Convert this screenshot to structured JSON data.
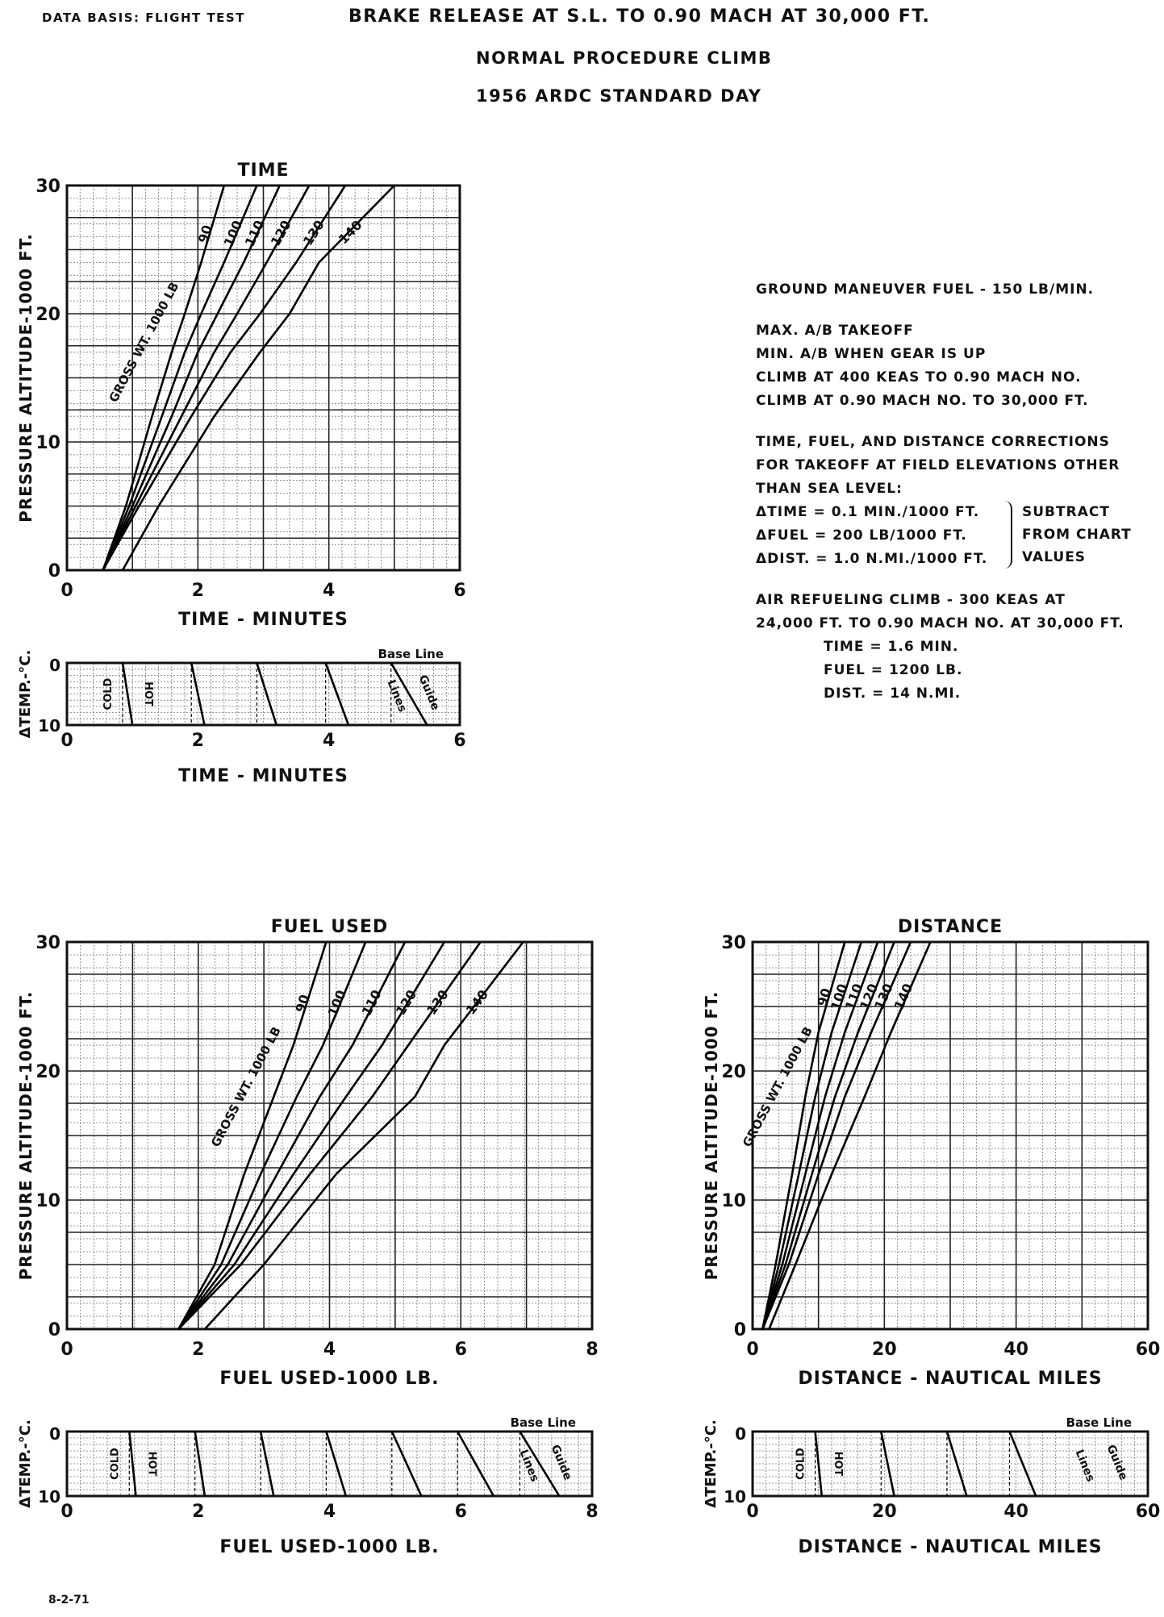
{
  "header": {
    "data_basis": "DATA BASIS: FLIGHT TEST",
    "title": "BRAKE RELEASE AT S.L. TO 0.90 MACH AT 30,000 FT.",
    "subtitle1": "NORMAL PROCEDURE CLIMB",
    "subtitle2": "1956 ARDC STANDARD DAY"
  },
  "notes": {
    "ground_fuel": "GROUND MANEUVER FUEL - 150 LB/MIN.",
    "takeoff": [
      "MAX. A/B TAKEOFF",
      "MIN. A/B WHEN GEAR IS UP",
      "CLIMB AT 400 KEAS TO 0.90 MACH NO.",
      "CLIMB AT 0.90 MACH NO. TO 30,000 FT."
    ],
    "corrections_intro": [
      "TIME, FUEL, AND DISTANCE CORRECTIONS",
      "FOR TAKEOFF AT FIELD ELEVATIONS OTHER",
      "THAN SEA LEVEL:"
    ],
    "corrections": [
      "ΔTIME = 0.1 MIN./1000 FT.",
      "ΔFUEL = 200 LB/1000 FT.",
      "ΔDIST. = 1.0 N.MI./1000 FT."
    ],
    "corrections_side": [
      "SUBTRACT",
      "FROM CHART",
      "VALUES"
    ],
    "air_refuel": [
      "AIR REFUELING CLIMB - 300 KEAS AT",
      "24,000 FT. TO 0.90 MACH NO. AT 30,000 FT."
    ],
    "air_refuel_values": [
      "TIME = 1.6 MIN.",
      "FUEL = 1200 LB.",
      "DIST. = 14 N.MI."
    ]
  },
  "footer": "8-2-71",
  "chart_data": [
    {
      "type": "line",
      "title": "TIME",
      "xlabel": "TIME - MINUTES",
      "ylabel": "PRESSURE ALTITUDE-1000 FT.",
      "xlim": [
        0,
        6
      ],
      "ylim": [
        0,
        30
      ],
      "x_ticks": [
        "0",
        "2",
        "4",
        "6"
      ],
      "y_ticks": [
        "0",
        "10",
        "20",
        "30"
      ],
      "grid": true,
      "curve_label": "GROSS WT. 1000 LB",
      "series": [
        {
          "name": "90",
          "points": [
            [
              0.55,
              0
            ],
            [
              0.9,
              5
            ],
            [
              1.3,
              12
            ],
            [
              1.6,
              17
            ],
            [
              1.8,
              20
            ],
            [
              2.05,
              24
            ],
            [
              2.4,
              30
            ]
          ]
        },
        {
          "name": "100",
          "points": [
            [
              0.55,
              0
            ],
            [
              0.95,
              5
            ],
            [
              1.45,
              12
            ],
            [
              1.8,
              17
            ],
            [
              2.05,
              20
            ],
            [
              2.4,
              24
            ],
            [
              2.9,
              30
            ]
          ]
        },
        {
          "name": "110",
          "points": [
            [
              0.55,
              0
            ],
            [
              1.0,
              5
            ],
            [
              1.6,
              12
            ],
            [
              2.0,
              17
            ],
            [
              2.3,
              20
            ],
            [
              2.7,
              24
            ],
            [
              3.25,
              30
            ]
          ]
        },
        {
          "name": "120",
          "points": [
            [
              0.55,
              0
            ],
            [
              1.05,
              5
            ],
            [
              1.75,
              12
            ],
            [
              2.25,
              17
            ],
            [
              2.6,
              20
            ],
            [
              3.05,
              24
            ],
            [
              3.7,
              30
            ]
          ]
        },
        {
          "name": "130",
          "points": [
            [
              0.55,
              0
            ],
            [
              1.1,
              5
            ],
            [
              1.9,
              12
            ],
            [
              2.5,
              17
            ],
            [
              2.95,
              20
            ],
            [
              3.5,
              24
            ],
            [
              4.25,
              30
            ]
          ]
        },
        {
          "name": "140",
          "points": [
            [
              0.85,
              0
            ],
            [
              1.4,
              5
            ],
            [
              2.25,
              12
            ],
            [
              2.95,
              17
            ],
            [
              3.4,
              20
            ],
            [
              3.85,
              24
            ],
            [
              5.0,
              30
            ]
          ]
        }
      ]
    },
    {
      "type": "line",
      "title": "",
      "xlabel": "TIME - MINUTES",
      "ylabel": "ΔTEMP.-°C.",
      "xlim": [
        0,
        6
      ],
      "ylim": [
        0,
        10
      ],
      "x_ticks": [
        "0",
        "2",
        "4",
        "6"
      ],
      "y_ticks": [
        "0",
        "10"
      ],
      "labels": [
        "Base Line",
        "COLD",
        "HOT",
        "Guide",
        "Lines"
      ],
      "guide_lines": [
        [
          0.85,
          1.0
        ],
        [
          1.9,
          2.1
        ],
        [
          2.9,
          3.2
        ],
        [
          3.95,
          4.3
        ],
        [
          4.95,
          5.5
        ]
      ]
    },
    {
      "type": "line",
      "title": "FUEL USED",
      "xlabel": "FUEL USED-1000 LB.",
      "ylabel": "PRESSURE ALTITUDE-1000 FT.",
      "xlim": [
        0,
        8
      ],
      "ylim": [
        0,
        30
      ],
      "x_ticks": [
        "0",
        "2",
        "4",
        "6",
        "8"
      ],
      "y_ticks": [
        "0",
        "10",
        "20",
        "30"
      ],
      "grid": true,
      "curve_label": "GROSS WT. 1000 LB",
      "series": [
        {
          "name": "90",
          "points": [
            [
              1.7,
              0
            ],
            [
              2.25,
              5
            ],
            [
              2.7,
              12
            ],
            [
              3.15,
              18
            ],
            [
              3.45,
              22
            ],
            [
              3.95,
              30
            ]
          ]
        },
        {
          "name": "100",
          "points": [
            [
              1.7,
              0
            ],
            [
              2.35,
              5
            ],
            [
              2.95,
              12
            ],
            [
              3.5,
              18
            ],
            [
              3.9,
              22
            ],
            [
              4.55,
              30
            ]
          ]
        },
        {
          "name": "110",
          "points": [
            [
              1.7,
              0
            ],
            [
              2.45,
              5
            ],
            [
              3.2,
              12
            ],
            [
              3.85,
              18
            ],
            [
              4.35,
              22
            ],
            [
              5.15,
              30
            ]
          ]
        },
        {
          "name": "120",
          "points": [
            [
              1.7,
              0
            ],
            [
              2.55,
              5
            ],
            [
              3.45,
              12
            ],
            [
              4.25,
              18
            ],
            [
              4.8,
              22
            ],
            [
              5.75,
              30
            ]
          ]
        },
        {
          "name": "130",
          "points": [
            [
              1.7,
              0
            ],
            [
              2.65,
              5
            ],
            [
              3.7,
              12
            ],
            [
              4.65,
              18
            ],
            [
              5.2,
              22
            ],
            [
              6.3,
              30
            ]
          ]
        },
        {
          "name": "140",
          "points": [
            [
              2.1,
              0
            ],
            [
              3.0,
              5
            ],
            [
              4.1,
              12
            ],
            [
              5.3,
              18
            ],
            [
              5.75,
              22
            ],
            [
              6.95,
              30
            ]
          ]
        }
      ]
    },
    {
      "type": "line",
      "title": "",
      "xlabel": "FUEL USED-1000 LB.",
      "ylabel": "ΔTEMP.-°C.",
      "xlim": [
        0,
        8
      ],
      "ylim": [
        0,
        10
      ],
      "x_ticks": [
        "0",
        "2",
        "4",
        "6",
        "8"
      ],
      "y_ticks": [
        "0",
        "10"
      ],
      "labels": [
        "Base Line",
        "COLD",
        "HOT",
        "Guide",
        "Lines"
      ],
      "guide_lines": [
        [
          0.95,
          1.05
        ],
        [
          1.95,
          2.1
        ],
        [
          2.95,
          3.15
        ],
        [
          3.95,
          4.25
        ],
        [
          4.95,
          5.4
        ],
        [
          5.95,
          6.5
        ],
        [
          6.9,
          7.5
        ]
      ]
    },
    {
      "type": "line",
      "title": "DISTANCE",
      "xlabel": "DISTANCE - NAUTICAL MILES",
      "ylabel": "PRESSURE ALTITUDE-1000 FT.",
      "xlim": [
        0,
        60
      ],
      "ylim": [
        0,
        30
      ],
      "x_ticks": [
        "0",
        "20",
        "40",
        "60"
      ],
      "y_ticks": [
        "0",
        "10",
        "20",
        "30"
      ],
      "grid": true,
      "curve_label": "GROSS WT. 1000 LB",
      "series": [
        {
          "name": "90",
          "points": [
            [
              1.5,
              0
            ],
            [
              3.5,
              5
            ],
            [
              6,
              12
            ],
            [
              8,
              18
            ],
            [
              10,
              23
            ],
            [
              14,
              30
            ]
          ]
        },
        {
          "name": "100",
          "points": [
            [
              1.5,
              0
            ],
            [
              4,
              5
            ],
            [
              7,
              12
            ],
            [
              9.5,
              18
            ],
            [
              12,
              23
            ],
            [
              16.5,
              30
            ]
          ]
        },
        {
          "name": "110",
          "points": [
            [
              1.5,
              0
            ],
            [
              4.5,
              5
            ],
            [
              8,
              12
            ],
            [
              11,
              18
            ],
            [
              14,
              23
            ],
            [
              19,
              30
            ]
          ]
        },
        {
          "name": "120",
          "points": [
            [
              1.5,
              0
            ],
            [
              5,
              5
            ],
            [
              9,
              12
            ],
            [
              12.5,
              18
            ],
            [
              16,
              23
            ],
            [
              21.5,
              30
            ]
          ]
        },
        {
          "name": "130",
          "points": [
            [
              1.5,
              0
            ],
            [
              5.5,
              5
            ],
            [
              10,
              12
            ],
            [
              14,
              18
            ],
            [
              18,
              23
            ],
            [
              24,
              30
            ]
          ]
        },
        {
          "name": "140",
          "points": [
            [
              2.5,
              0
            ],
            [
              6.5,
              5
            ],
            [
              12,
              12
            ],
            [
              17,
              18
            ],
            [
              21,
              23
            ],
            [
              27,
              30
            ]
          ]
        }
      ]
    },
    {
      "type": "line",
      "title": "",
      "xlabel": "DISTANCE - NAUTICAL MILES",
      "ylabel": "ΔTEMP.-°C.",
      "xlim": [
        0,
        60
      ],
      "ylim": [
        0,
        10
      ],
      "x_ticks": [
        "0",
        "20",
        "40",
        "60"
      ],
      "y_ticks": [
        "0",
        "10"
      ],
      "labels": [
        "Base Line",
        "COLD",
        "HOT",
        "Guide",
        "Lines"
      ],
      "guide_lines": [
        [
          9.5,
          10.5
        ],
        [
          19.5,
          21.5
        ],
        [
          29.5,
          32.5
        ],
        [
          39,
          43
        ]
      ]
    }
  ]
}
